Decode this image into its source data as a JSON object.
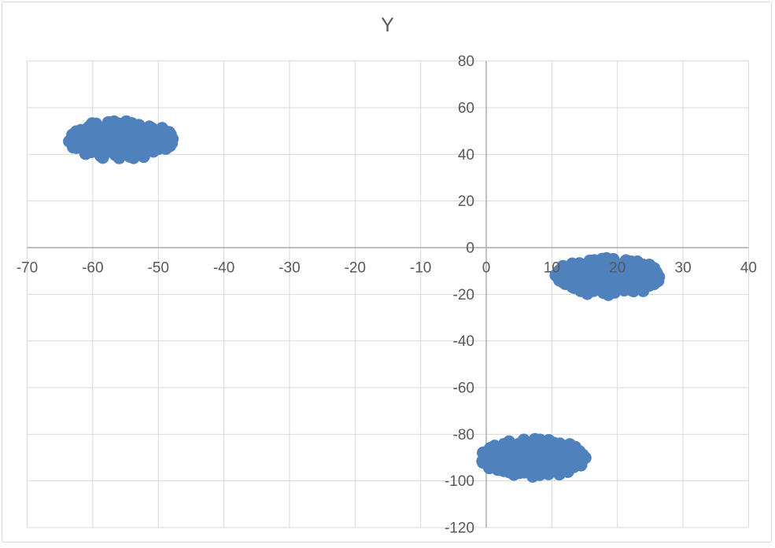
{
  "title": "Y",
  "colors": {
    "marker": "#4f81bd",
    "gridline": "#d9d9d9",
    "axis_line": "#a9a9a9",
    "tick_label": "#595959",
    "title_color": "#595959",
    "chart_border": "#d7d7d7",
    "background": "#ffffff"
  },
  "chart_data": {
    "type": "scatter",
    "title": "Y",
    "xlabel": "",
    "ylabel": "",
    "xlim": [
      -70,
      40
    ],
    "ylim": [
      -120,
      80
    ],
    "x_ticks": [
      -70,
      -60,
      -50,
      -40,
      -30,
      -20,
      -10,
      0,
      10,
      20,
      30,
      40
    ],
    "y_ticks": [
      80,
      60,
      40,
      20,
      0,
      -20,
      -40,
      -60,
      -80,
      -100,
      -120
    ],
    "grid": true,
    "legend": false,
    "series": [
      {
        "name": "Y",
        "marker": "circle",
        "color": "#4f81bd",
        "clusters": [
          {
            "cx": -55.8,
            "cy": 46.3,
            "x_min": -64.5,
            "x_max": -47.1,
            "y_min": 36.5,
            "y_max": 56.2
          },
          {
            "cx": 18.6,
            "cy": -12.3,
            "x_min": 9.8,
            "x_max": 27.4,
            "y_min": -22.2,
            "y_max": -2.4
          },
          {
            "cx": 7.2,
            "cy": -90.2,
            "x_min": -1.4,
            "x_max": 15.8,
            "y_min": -100.0,
            "y_max": -80.3
          }
        ]
      }
    ]
  }
}
